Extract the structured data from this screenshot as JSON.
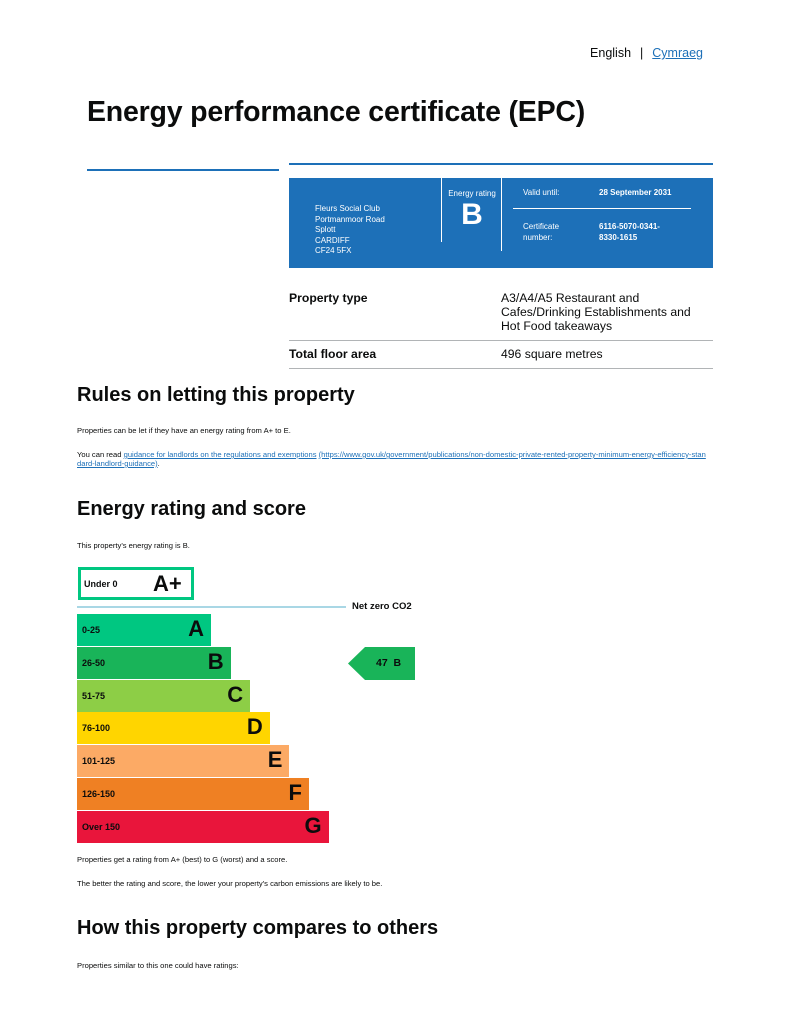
{
  "lang": {
    "english": "English",
    "separator": "|",
    "welsh": "Cymraeg"
  },
  "page_title": "Energy performance certificate (EPC)",
  "summary": {
    "address": [
      "Fleurs Social Club",
      "Portmanmoor Road",
      "Splott",
      "CARDIFF",
      "CF24 5FX"
    ],
    "energy_rating_label": "Energy rating",
    "energy_rating": "B",
    "valid_until_label": "Valid until:",
    "valid_until": "28 September 2031",
    "certificate_label_1": "Certificate",
    "certificate_label_2": "number:",
    "certificate_number_1": "6116-5070-0341-",
    "certificate_number_2": "8330-1615"
  },
  "property": {
    "type_label": "Property type",
    "type_value": "A3/A4/A5 Restaurant and Cafes/Drinking Establishments and Hot Food takeaways",
    "area_label": "Total floor area",
    "area_value": "496 square metres"
  },
  "letting": {
    "heading": "Rules on letting this property",
    "para1": "Properties can be let if they have an energy rating from A+ to E.",
    "para2_prefix": "You can read ",
    "para2_link": "guidance for landlords on the regulations and exemptions",
    "para2_url": "(https://www.gov.uk/government/publications/non-domestic-private-rented-property-minimum-energy-efficiency-standard-landlord-guidance)",
    "para2_suffix": "."
  },
  "rating": {
    "heading": "Energy rating and score",
    "intro": "This property's energy rating is B.",
    "net_zero_label": "Net zero CO2",
    "footer1": "Properties get a rating from A+ (best) to G (worst) and a score.",
    "footer2": "The better the rating and score, the lower your property's carbon emissions are likely to be."
  },
  "chart_data": {
    "type": "bar",
    "title": "",
    "aplus": {
      "range": "Under 0",
      "letter": "A+",
      "color": "#00c781"
    },
    "bands": [
      {
        "range": "0-25",
        "letter": "A",
        "color": "#00c781"
      },
      {
        "range": "26-50",
        "letter": "B",
        "color": "#19b459"
      },
      {
        "range": "51-75",
        "letter": "C",
        "color": "#8dce46"
      },
      {
        "range": "76-100",
        "letter": "D",
        "color": "#ffd500"
      },
      {
        "range": "101-125",
        "letter": "E",
        "color": "#fcaa65"
      },
      {
        "range": "126-150",
        "letter": "F",
        "color": "#ef8023"
      },
      {
        "range": "Over 150",
        "letter": "G",
        "color": "#e9153b"
      }
    ],
    "current": {
      "score": "47",
      "letter": "B",
      "band_index": 1,
      "color": "#19b459"
    }
  },
  "compare": {
    "heading": "How this property compares to others",
    "intro": "Properties similar to this one could have ratings:"
  }
}
